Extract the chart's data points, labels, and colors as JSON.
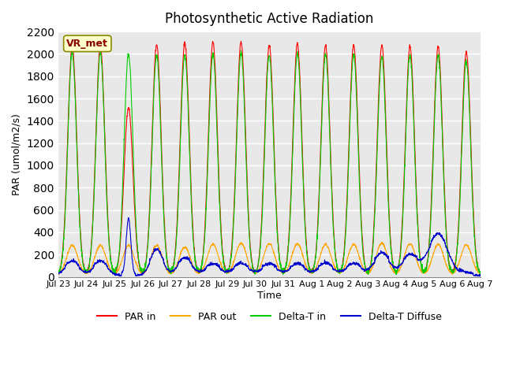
{
  "title": "Photosynthetic Active Radiation",
  "ylabel": "PAR (umol/m2/s)",
  "xlabel": "Time",
  "ylim": [
    0,
    2200
  ],
  "annotation_label": "VR_met",
  "annotation_box_color": "#FFFFCC",
  "annotation_text_color": "#8B0000",
  "annotation_border_color": "#8B8B00",
  "background_color": "#E8E8E8",
  "grid_color": "#FFFFFF",
  "x_tick_labels": [
    "Jul 23",
    "Jul 24",
    "Jul 25",
    "Jul 26",
    "Jul 27",
    "Jul 28",
    "Jul 29",
    "Jul 30",
    "Jul 31",
    "Aug 1",
    "Aug 2",
    "Aug 3",
    "Aug 4",
    "Aug 5",
    "Aug 6",
    "Aug 7"
  ],
  "num_days": 15,
  "series": {
    "PAR_in": {
      "color": "#FF0000",
      "label": "PAR in"
    },
    "PAR_out": {
      "color": "#FFA500",
      "label": "PAR out"
    },
    "Delta_T_in": {
      "color": "#00CC00",
      "label": "Delta-T in"
    },
    "Delta_T_Diffuse": {
      "color": "#0000CD",
      "label": "Delta-T Diffuse"
    }
  },
  "legend_colors": [
    "#FF0000",
    "#FFA500",
    "#00CC00",
    "#0000CD"
  ],
  "legend_labels": [
    "PAR in",
    "PAR out",
    "Delta-T in",
    "Delta-T Diffuse"
  ]
}
